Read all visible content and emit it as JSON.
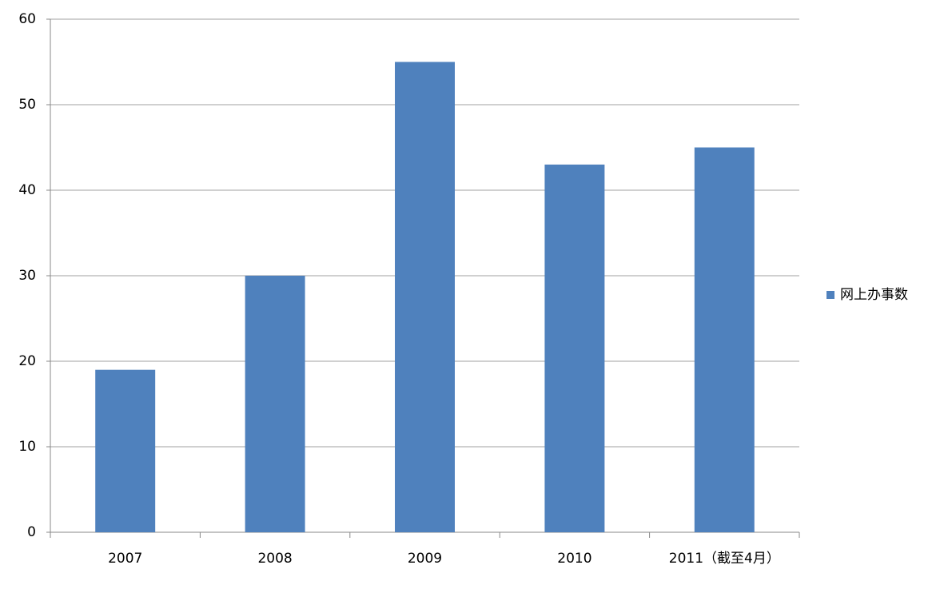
{
  "chart_data": {
    "type": "bar",
    "categories": [
      "2007",
      "2008",
      "2009",
      "2010",
      "2011（截至4月）"
    ],
    "series": [
      {
        "name": "网上办事数",
        "color": "#4f81bd",
        "values": [
          19,
          30,
          55,
          43,
          45
        ]
      }
    ],
    "ylim": [
      0,
      60
    ],
    "yticks": [
      0,
      10,
      20,
      30,
      40,
      50,
      60
    ],
    "grid": true,
    "legend": "right"
  }
}
